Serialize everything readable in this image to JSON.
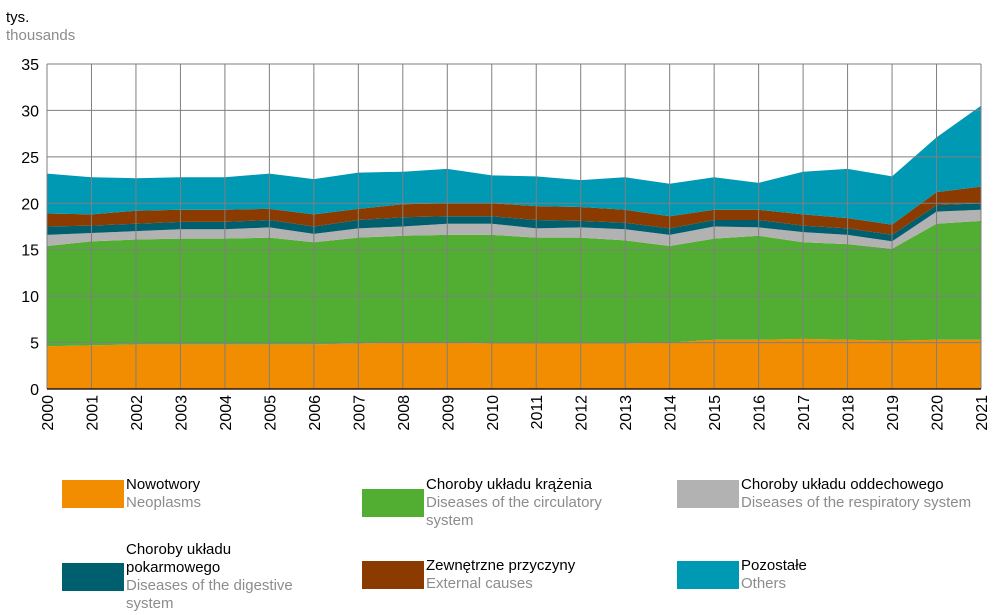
{
  "chart_data": {
    "type": "stacked_area",
    "y_label": "tys.",
    "y_label_en": "thousands",
    "x": [
      2000,
      2001,
      2002,
      2003,
      2004,
      2005,
      2006,
      2007,
      2008,
      2009,
      2010,
      2011,
      2012,
      2013,
      2014,
      2015,
      2016,
      2017,
      2018,
      2019,
      2020,
      2021
    ],
    "xlim": [
      2000,
      2021
    ],
    "ylim": [
      0,
      35
    ],
    "yticks": [
      0,
      5,
      10,
      15,
      20,
      25,
      30,
      35
    ],
    "grid": true,
    "series": [
      {
        "name": "Nowotwory",
        "subtitle": "Neoplasms",
        "color": "#f28c00",
        "values": [
          4.6,
          4.7,
          4.8,
          4.8,
          4.8,
          4.8,
          4.8,
          4.9,
          5.0,
          5.0,
          4.9,
          4.9,
          4.9,
          4.9,
          5.0,
          5.3,
          5.3,
          5.4,
          5.3,
          5.2,
          5.3,
          5.3
        ]
      },
      {
        "name": "Choroby układu krążenia",
        "subtitle": "Diseases of the circulatory system",
        "color": "#52ae32",
        "values": [
          10.8,
          11.2,
          11.3,
          11.4,
          11.4,
          11.5,
          11.0,
          11.4,
          11.5,
          11.6,
          11.7,
          11.4,
          11.4,
          11.1,
          10.4,
          10.9,
          11.2,
          10.4,
          10.3,
          9.9,
          12.5,
          12.8
        ]
      },
      {
        "name": "Choroby układu oddechowego",
        "subtitle": "Diseases of the respiratory system",
        "color": "#b2b2b2",
        "values": [
          1.2,
          0.9,
          0.9,
          1.0,
          1.0,
          1.1,
          0.9,
          1.0,
          1.0,
          1.2,
          1.2,
          1.0,
          1.1,
          1.2,
          1.2,
          1.3,
          0.9,
          1.1,
          1.0,
          0.8,
          1.3,
          1.2
        ]
      },
      {
        "name": "Choroby układu pokarmowego",
        "subtitle": "Diseases of the digestive system",
        "color": "#005f6e",
        "values": [
          0.9,
          0.8,
          0.8,
          0.8,
          0.8,
          0.8,
          0.8,
          0.9,
          1.0,
          0.8,
          0.8,
          0.9,
          0.7,
          0.7,
          0.7,
          0.7,
          0.8,
          0.7,
          0.7,
          0.7,
          0.7,
          0.7
        ]
      },
      {
        "name": "Zewnętrzne przyczyny",
        "subtitle": "External causes",
        "color": "#8b3a00",
        "values": [
          1.4,
          1.2,
          1.4,
          1.3,
          1.3,
          1.2,
          1.3,
          1.2,
          1.4,
          1.4,
          1.4,
          1.5,
          1.5,
          1.4,
          1.3,
          1.1,
          1.1,
          1.2,
          1.1,
          1.1,
          1.4,
          1.8
        ]
      },
      {
        "name": "Pozostałe",
        "subtitle": "Others",
        "color": "#0099b4",
        "values": [
          4.3,
          4.0,
          3.5,
          3.5,
          3.5,
          3.8,
          3.8,
          3.9,
          3.5,
          3.7,
          3.0,
          3.2,
          2.9,
          3.5,
          3.5,
          3.5,
          2.9,
          4.6,
          5.3,
          5.2,
          5.9,
          8.7
        ]
      }
    ]
  }
}
